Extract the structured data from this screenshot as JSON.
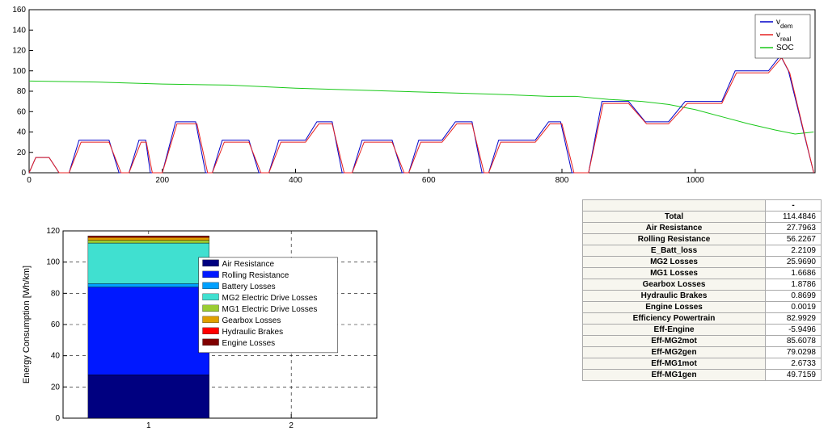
{
  "top_chart": {
    "type": "line",
    "xlim": [
      0,
      1180
    ],
    "ylim": [
      0,
      160
    ],
    "xtick_step": 200,
    "ytick_step": 20,
    "xticks": [
      0,
      200,
      400,
      600,
      800,
      1000
    ],
    "yticks": [
      0,
      20,
      40,
      60,
      80,
      100,
      120,
      140,
      160
    ],
    "background_color": "#ffffff",
    "grid_color": "none",
    "axis_color": "#000000",
    "tick_fontsize": 10,
    "legend": {
      "pos": "top-right",
      "border_color": "#000000",
      "bg_color": "#ffffff",
      "items": [
        {
          "label": "v_dem",
          "sub": "dem",
          "color": "#0000c8"
        },
        {
          "label": "v_real",
          "sub": "real",
          "color": "#e62020"
        },
        {
          "label": "SOC",
          "sub": "",
          "color": "#19c819"
        }
      ]
    },
    "series": {
      "v_dem": {
        "color": "#0000c8",
        "width": 1,
        "points": [
          [
            0,
            0
          ],
          [
            10,
            15
          ],
          [
            30,
            15
          ],
          [
            45,
            0
          ],
          [
            60,
            0
          ],
          [
            75,
            32
          ],
          [
            120,
            32
          ],
          [
            135,
            0
          ],
          [
            150,
            0
          ],
          [
            165,
            32
          ],
          [
            175,
            32
          ],
          [
            182,
            0
          ],
          [
            200,
            0
          ],
          [
            220,
            50
          ],
          [
            250,
            50
          ],
          [
            265,
            0
          ],
          [
            275,
            0
          ],
          [
            290,
            32
          ],
          [
            330,
            32
          ],
          [
            345,
            0
          ],
          [
            360,
            0
          ],
          [
            375,
            32
          ],
          [
            415,
            32
          ],
          [
            432,
            50
          ],
          [
            455,
            50
          ],
          [
            470,
            0
          ],
          [
            485,
            0
          ],
          [
            500,
            32
          ],
          [
            545,
            32
          ],
          [
            560,
            0
          ],
          [
            570,
            0
          ],
          [
            585,
            32
          ],
          [
            620,
            32
          ],
          [
            640,
            50
          ],
          [
            665,
            50
          ],
          [
            680,
            0
          ],
          [
            690,
            0
          ],
          [
            705,
            32
          ],
          [
            760,
            32
          ],
          [
            780,
            50
          ],
          [
            798,
            50
          ],
          [
            815,
            0
          ],
          [
            840,
            0
          ],
          [
            860,
            70
          ],
          [
            900,
            70
          ],
          [
            925,
            50
          ],
          [
            960,
            50
          ],
          [
            985,
            70
          ],
          [
            1040,
            70
          ],
          [
            1060,
            100
          ],
          [
            1110,
            100
          ],
          [
            1128,
            115
          ],
          [
            1140,
            100
          ],
          [
            1178,
            0
          ]
        ]
      },
      "v_real": {
        "color": "#e62020",
        "width": 1,
        "points": [
          [
            0,
            0
          ],
          [
            10,
            15
          ],
          [
            30,
            15
          ],
          [
            45,
            0
          ],
          [
            60,
            0
          ],
          [
            78,
            30
          ],
          [
            120,
            30
          ],
          [
            138,
            0
          ],
          [
            150,
            0
          ],
          [
            168,
            30
          ],
          [
            176,
            30
          ],
          [
            185,
            0
          ],
          [
            200,
            0
          ],
          [
            222,
            48
          ],
          [
            252,
            48
          ],
          [
            268,
            0
          ],
          [
            275,
            0
          ],
          [
            293,
            30
          ],
          [
            330,
            30
          ],
          [
            348,
            0
          ],
          [
            360,
            0
          ],
          [
            378,
            30
          ],
          [
            415,
            30
          ],
          [
            435,
            48
          ],
          [
            455,
            48
          ],
          [
            473,
            0
          ],
          [
            485,
            0
          ],
          [
            503,
            30
          ],
          [
            545,
            30
          ],
          [
            563,
            0
          ],
          [
            570,
            0
          ],
          [
            588,
            30
          ],
          [
            620,
            30
          ],
          [
            642,
            48
          ],
          [
            665,
            48
          ],
          [
            683,
            0
          ],
          [
            690,
            0
          ],
          [
            708,
            30
          ],
          [
            760,
            30
          ],
          [
            782,
            48
          ],
          [
            800,
            48
          ],
          [
            818,
            0
          ],
          [
            840,
            0
          ],
          [
            862,
            68
          ],
          [
            900,
            68
          ],
          [
            927,
            48
          ],
          [
            960,
            48
          ],
          [
            988,
            68
          ],
          [
            1040,
            68
          ],
          [
            1062,
            98
          ],
          [
            1110,
            98
          ],
          [
            1130,
            113
          ],
          [
            1142,
            98
          ],
          [
            1178,
            0
          ]
        ]
      },
      "SOC": {
        "color": "#19c819",
        "width": 1,
        "points": [
          [
            0,
            90
          ],
          [
            100,
            89
          ],
          [
            200,
            87
          ],
          [
            300,
            86
          ],
          [
            400,
            83
          ],
          [
            500,
            81
          ],
          [
            600,
            79
          ],
          [
            700,
            77
          ],
          [
            780,
            75
          ],
          [
            820,
            75
          ],
          [
            870,
            72
          ],
          [
            920,
            70
          ],
          [
            960,
            67
          ],
          [
            1000,
            62
          ],
          [
            1040,
            55
          ],
          [
            1080,
            48
          ],
          [
            1120,
            42
          ],
          [
            1150,
            38
          ],
          [
            1178,
            40
          ]
        ]
      }
    }
  },
  "bar_chart": {
    "type": "stacked-bar",
    "ylabel": "Energy Consumption [Wh/km]",
    "ylabel_fontsize": 11,
    "xlim": [
      0.4,
      2.6
    ],
    "ylim": [
      0,
      120
    ],
    "xticks": [
      1,
      2
    ],
    "yticks": [
      0,
      20,
      40,
      60,
      80,
      100,
      120
    ],
    "xtick_labels": [
      "1",
      "2"
    ],
    "grid_style": "dashed",
    "grid_color": "#000000",
    "grid_dash": "4 4",
    "background_color": "#ffffff",
    "axis_color": "#000000",
    "tick_fontsize": 10,
    "bar_x": 1,
    "bar_width": 0.85,
    "stack": [
      {
        "label": "Air Resistance",
        "value": 27.8,
        "color": "#000080"
      },
      {
        "label": "Rolling Resistance",
        "value": 56.2,
        "color": "#0018ff"
      },
      {
        "label": "Battery Losses",
        "value": 2.2,
        "color": "#00a0ff"
      },
      {
        "label": "MG2 Electric Drive Losses",
        "value": 26.0,
        "color": "#40e0d0"
      },
      {
        "label": "MG1 Electric Drive Losses",
        "value": 1.7,
        "color": "#9acd32"
      },
      {
        "label": "Gearbox Losses",
        "value": 1.9,
        "color": "#e0a000"
      },
      {
        "label": "Hydraulic Brakes",
        "value": 0.9,
        "color": "#ff0000"
      },
      {
        "label": "Engine Losses",
        "value": 0.002,
        "color": "#800000"
      }
    ],
    "legend": {
      "border_color": "#000000",
      "bg_color": "#ffffff",
      "fontsize": 10
    }
  },
  "table": {
    "header_unit": "-",
    "rows": [
      {
        "label": "Total",
        "value": "114.4846"
      },
      {
        "label": "Air Resistance",
        "value": "27.7963"
      },
      {
        "label": "Rolling Resistance",
        "value": "56.2267"
      },
      {
        "label": "E_Batt_loss",
        "value": "2.2109"
      },
      {
        "label": "MG2 Losses",
        "value": "25.9690"
      },
      {
        "label": "MG1 Losses",
        "value": "1.6686"
      },
      {
        "label": "Gearbox Losses",
        "value": "1.8786"
      },
      {
        "label": "Hydraulic Brakes",
        "value": "0.8699"
      },
      {
        "label": "Engine Losses",
        "value": "0.0019"
      },
      {
        "label": "Efficiency Powertrain",
        "value": "82.9929"
      },
      {
        "label": "Eff-Engine",
        "value": "-5.9496"
      },
      {
        "label": "Eff-MG2mot",
        "value": "85.6078"
      },
      {
        "label": "Eff-MG2gen",
        "value": "79.0298"
      },
      {
        "label": "Eff-MG1mot",
        "value": "2.6733"
      },
      {
        "label": "Eff-MG1gen",
        "value": "49.7159"
      }
    ]
  }
}
